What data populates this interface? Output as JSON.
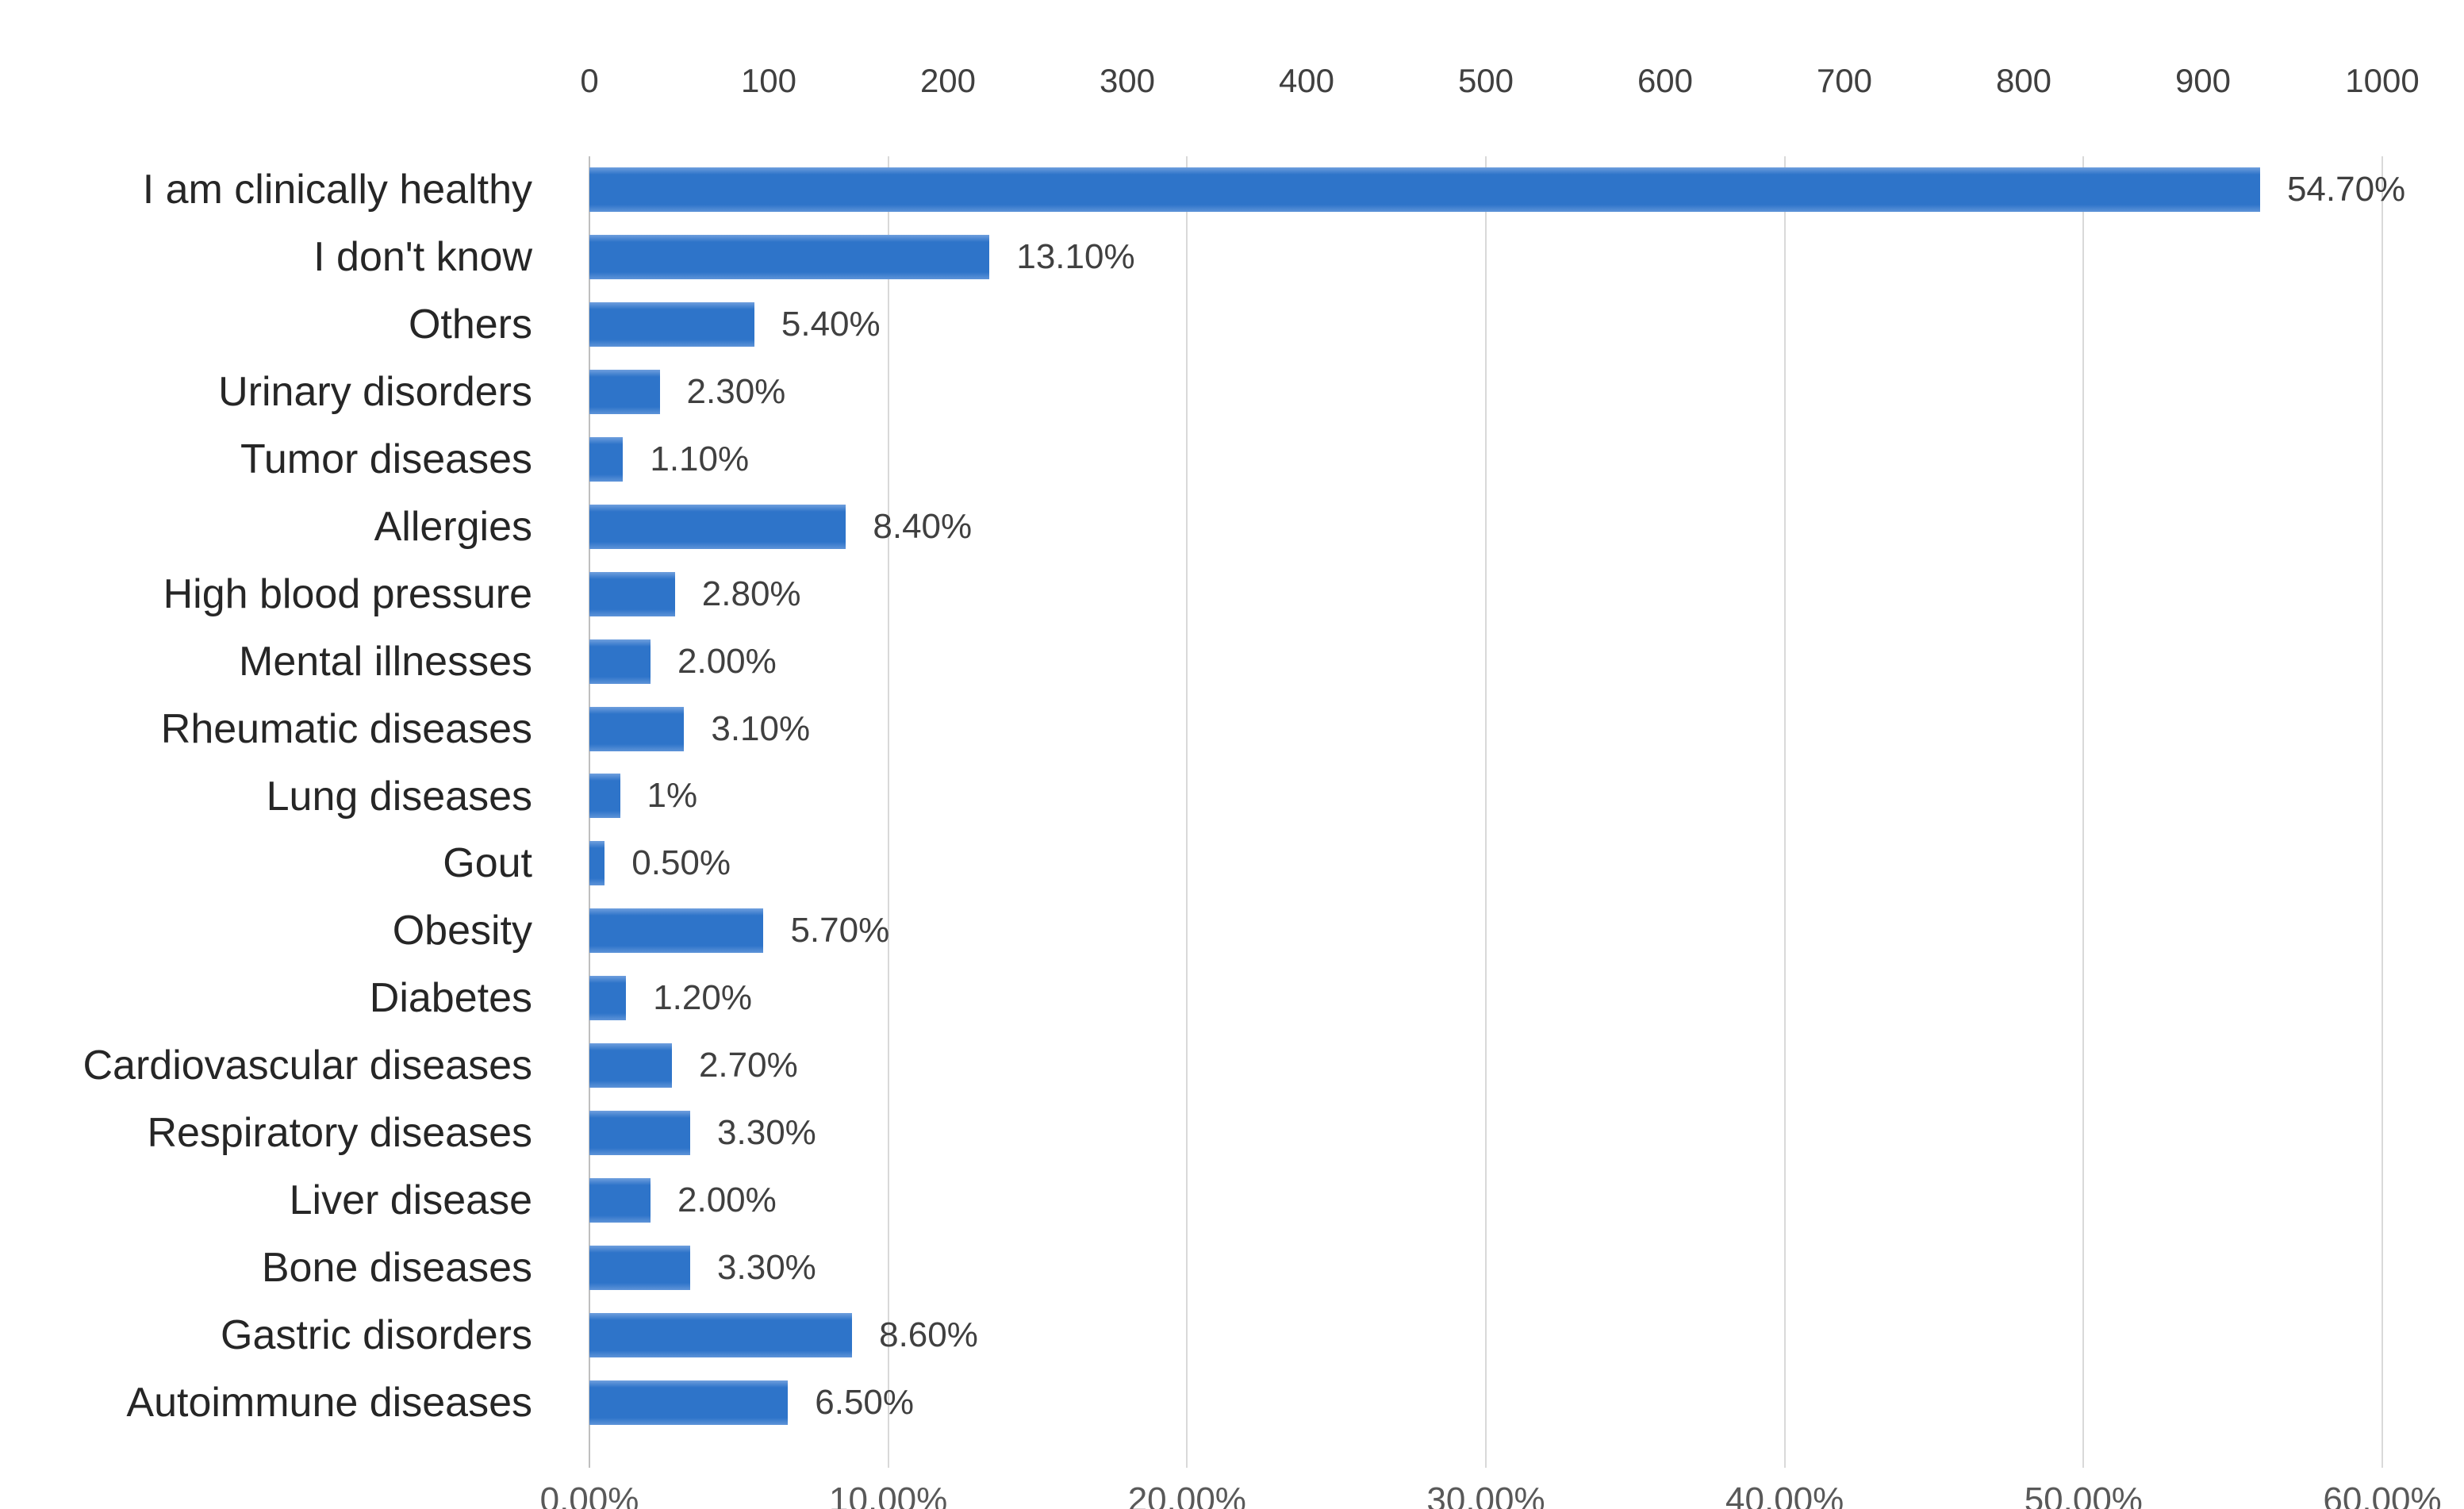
{
  "chart_data": {
    "type": "bar",
    "orientation": "horizontal",
    "title": "",
    "xlabel": "",
    "ylabel": "",
    "grid": true,
    "legend": false,
    "bar_color": "#2E74C9",
    "gridline_color": "#D9D9D9",
    "categories": [
      "I am clinically healthy",
      "I don't know",
      "Others",
      "Urinary disorders",
      "Tumor diseases",
      "Allergies",
      "High blood pressure",
      "Mental illnesses",
      "Rheumatic diseases",
      "Lung diseases",
      "Gout",
      "Obesity",
      "Diabetes",
      "Cardiovascular diseases",
      "Respiratory diseases",
      "Liver disease",
      "Bone diseases",
      "Gastric disorders",
      "Autoimmune diseases"
    ],
    "values": [
      54.7,
      13.1,
      5.4,
      2.3,
      1.1,
      8.4,
      2.8,
      2.0,
      3.1,
      1.0,
      0.5,
      5.7,
      1.2,
      2.7,
      3.3,
      2.0,
      3.3,
      8.6,
      6.5
    ],
    "value_labels": [
      "54.70%",
      "13.10%",
      "5.40%",
      "2.30%",
      "1.10%",
      "8.40%",
      "2.80%",
      "2.00%",
      "3.10%",
      "1%",
      "0.50%",
      "5.70%",
      "1.20%",
      "2.70%",
      "3.30%",
      "2.00%",
      "3.30%",
      "8.60%",
      "6.50%"
    ],
    "top_axis": {
      "ticks": [
        "0",
        "100",
        "200",
        "300",
        "400",
        "500",
        "600",
        "700",
        "800",
        "900",
        "1000"
      ],
      "min": 0,
      "max": 1000
    },
    "bottom_axis": {
      "ticks": [
        "0.00%",
        "10.00%",
        "20.00%",
        "30.00%",
        "40.00%",
        "50.00%",
        "60.00%"
      ],
      "min": 0,
      "max": 60
    }
  }
}
